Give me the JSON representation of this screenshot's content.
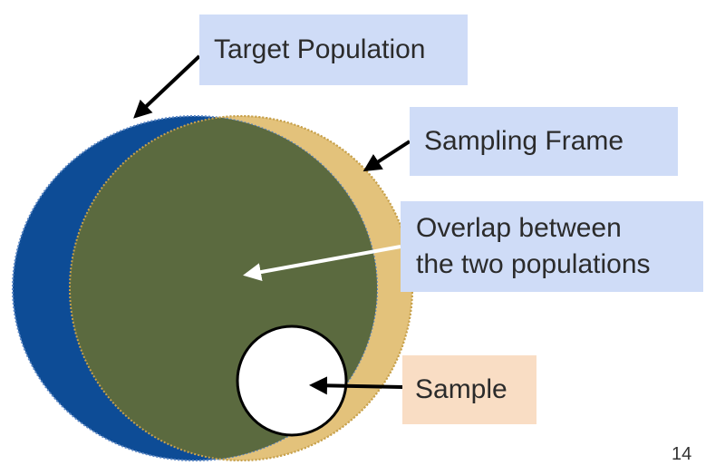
{
  "labels": {
    "target_population": "Target Population",
    "sampling_frame": "Sampling Frame",
    "overlap_line1": "Overlap between",
    "overlap_line2": "the two populations",
    "sample": "Sample"
  },
  "page_number": "14",
  "colors": {
    "target_population": "#0d4c96",
    "sampling_frame": "#e3c27b",
    "overlap": "#5b6a3f",
    "sample": "#ffffff",
    "label_blue": "#cfdcf7",
    "label_peach": "#f9ddc4"
  }
}
